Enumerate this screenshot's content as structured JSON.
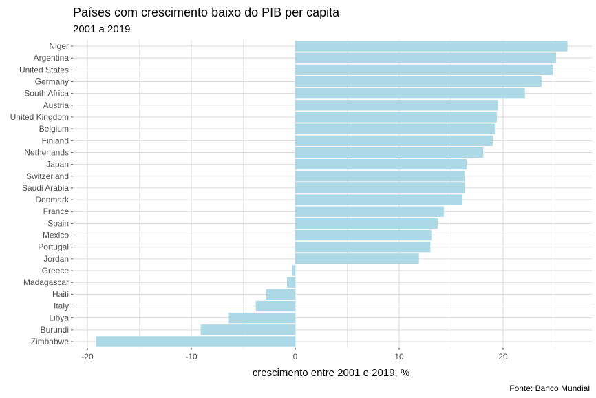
{
  "chart_data": {
    "type": "bar",
    "orientation": "horizontal",
    "title": "Países com crescimento baixo do PIB per capita",
    "subtitle": "2001 a 2019",
    "xlabel": "crescimento entre 2001 e 2019, %",
    "ylabel": "",
    "caption": "Fonte: Banco Mundial",
    "xlim": [
      -20,
      27
    ],
    "xticks": [
      -20,
      -10,
      0,
      10,
      20
    ],
    "xtick_labels": [
      "-20",
      "-10",
      "0",
      "10",
      "20"
    ],
    "grid": true,
    "bar_color": "#add8e6",
    "grid_color": "#d9d9d9",
    "categories": [
      "Niger",
      "Argentina",
      "United States",
      "Germany",
      "South Africa",
      "Austria",
      "United Kingdom",
      "Belgium",
      "Finland",
      "Netherlands",
      "Japan",
      "Switzerland",
      "Saudi Arabia",
      "Denmark",
      "France",
      "Spain",
      "Mexico",
      "Portugal",
      "Jordan",
      "Greece",
      "Madagascar",
      "Haiti",
      "Italy",
      "Libya",
      "Burundi",
      "Zimbabwe"
    ],
    "values": [
      26.2,
      25.1,
      24.8,
      23.7,
      22.1,
      19.5,
      19.4,
      19.2,
      19.0,
      18.1,
      16.5,
      16.3,
      16.3,
      16.1,
      14.3,
      13.7,
      13.1,
      13.0,
      11.9,
      -0.3,
      -0.8,
      -2.8,
      -3.8,
      -6.4,
      -9.1,
      -19.2
    ]
  }
}
